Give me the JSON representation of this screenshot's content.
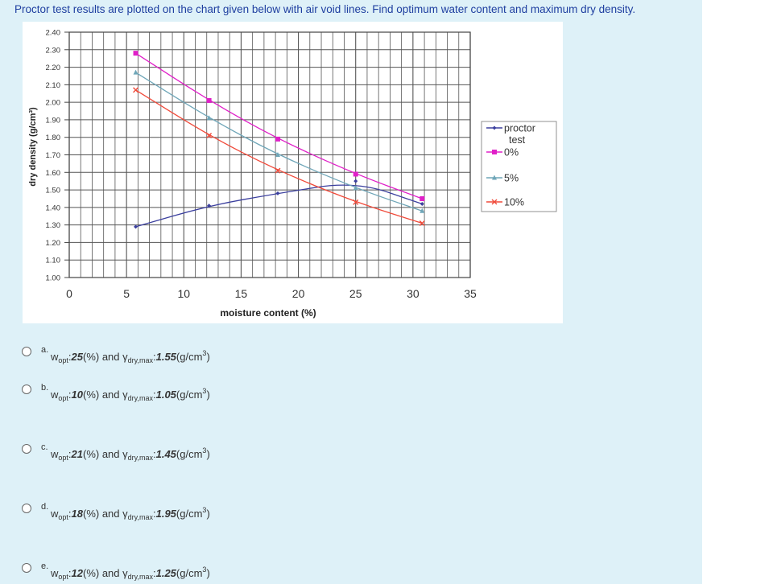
{
  "question": "Proctor test results are plotted on the chart given below with air void lines. Find optimum water content and maximum dry density.",
  "chart_data": {
    "type": "line",
    "xlabel": "moisture content (%)",
    "ylabel": "dry density (g/cm³)",
    "xlim": [
      0,
      35
    ],
    "ylim": [
      1.0,
      2.4
    ],
    "x_ticks": [
      "0",
      "5",
      "10",
      "15",
      "20",
      "25",
      "30",
      "35"
    ],
    "y_ticks": [
      "2.40",
      "2.30",
      "2.20",
      "2.10",
      "2.00",
      "1.90",
      "1.80",
      "1.70",
      "1.60",
      "1.50",
      "1.40",
      "1.30",
      "1.20",
      "1.10",
      "1.00"
    ],
    "grid": true,
    "legend_position": "right",
    "series": [
      {
        "name": "proctor test",
        "color": "#3b3f9e",
        "marker": "diamond",
        "points": [
          [
            5.8,
            1.29
          ],
          [
            12.2,
            1.41
          ],
          [
            18.2,
            1.48
          ],
          [
            25.0,
            1.55
          ],
          [
            30.8,
            1.42
          ]
        ]
      },
      {
        "name": "0%",
        "color": "#e020c8",
        "marker": "square",
        "points": [
          [
            5.8,
            2.28
          ],
          [
            12.2,
            2.01
          ],
          [
            18.2,
            1.79
          ],
          [
            25.0,
            1.59
          ],
          [
            30.8,
            1.45
          ]
        ]
      },
      {
        "name": "5%",
        "color": "#6fa6b8",
        "marker": "triangle",
        "points": [
          [
            5.8,
            2.17
          ],
          [
            12.2,
            1.91
          ],
          [
            18.2,
            1.7
          ],
          [
            25.0,
            1.51
          ],
          [
            30.8,
            1.38
          ]
        ]
      },
      {
        "name": "10%",
        "color": "#f04a3a",
        "marker": "x",
        "points": [
          [
            5.8,
            2.07
          ],
          [
            12.2,
            1.81
          ],
          [
            18.2,
            1.61
          ],
          [
            25.0,
            1.43
          ],
          [
            30.8,
            1.31
          ]
        ]
      }
    ]
  },
  "legend": {
    "proctor_line1": "proctor",
    "proctor_line2": "test",
    "zero": "0%",
    "five": "5%",
    "ten": "10%"
  },
  "options": [
    {
      "letter": "a.",
      "w": "25",
      "g": "1.55"
    },
    {
      "letter": "b.",
      "w": "10",
      "g": "1.05"
    },
    {
      "letter": "c.",
      "w": "21",
      "g": "1.45"
    },
    {
      "letter": "d.",
      "w": "18",
      "g": "1.95"
    },
    {
      "letter": "e.",
      "w": "12",
      "g": "1.25"
    }
  ],
  "option_text": {
    "w_symbol": "w",
    "w_sub": "opt",
    "colon": ":",
    "pct": "(%)",
    "and": " and ",
    "g_symbol": "γ",
    "g_sub": "dry,max",
    "unit_open": "(g/cm",
    "unit_sup": "3",
    "unit_close": ")"
  }
}
